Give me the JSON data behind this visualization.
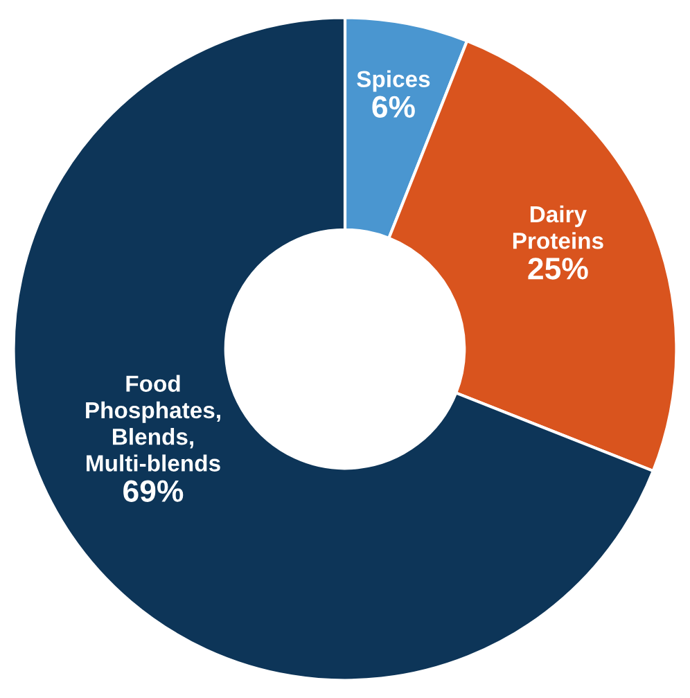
{
  "chart_data": {
    "type": "donut",
    "categories": [
      "Spices",
      "Dairy\nProteins",
      "Food\nPhosphates,\nBlends,\nMulti-blends"
    ],
    "values": [
      6,
      25,
      69
    ],
    "colors": [
      "#4a96d0",
      "#d9541e",
      "#0d3558"
    ],
    "value_labels": [
      "6%",
      "25%",
      "69%"
    ]
  }
}
